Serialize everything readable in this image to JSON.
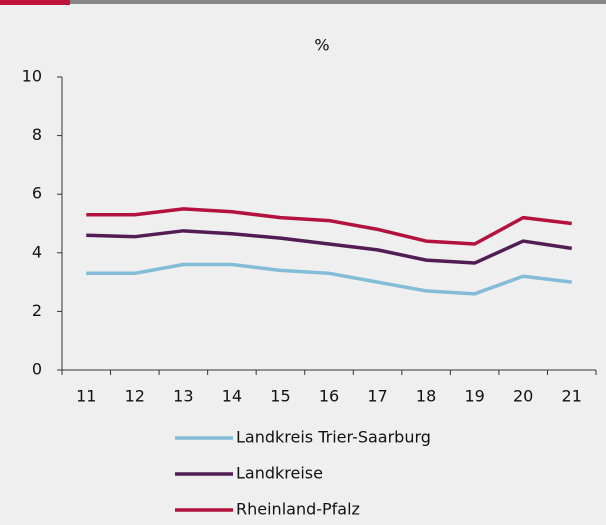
{
  "chart_data": {
    "type": "line",
    "title": "%",
    "categories": [
      "11",
      "12",
      "13",
      "14",
      "15",
      "16",
      "17",
      "18",
      "19",
      "20",
      "21"
    ],
    "series": [
      {
        "name": "Landkreis Trier-Saarburg",
        "color": "#82bcd6",
        "values": [
          3.3,
          3.3,
          3.6,
          3.6,
          3.4,
          3.3,
          3.0,
          2.7,
          2.6,
          3.2,
          3.0
        ]
      },
      {
        "name": "Landkreise",
        "color": "#521d55",
        "values": [
          4.6,
          4.55,
          4.75,
          4.65,
          4.5,
          4.3,
          4.1,
          3.75,
          3.65,
          4.4,
          4.15
        ]
      },
      {
        "name": "Rheinland-Pfalz",
        "color": "#b3123c",
        "values": [
          5.3,
          5.3,
          5.5,
          5.4,
          5.2,
          5.1,
          4.8,
          4.4,
          4.3,
          5.2,
          5.0
        ]
      }
    ],
    "ylim": [
      0,
      10
    ],
    "yticks": [
      0,
      2,
      4,
      6,
      8,
      10
    ],
    "grid": false,
    "legend": "bottom"
  }
}
